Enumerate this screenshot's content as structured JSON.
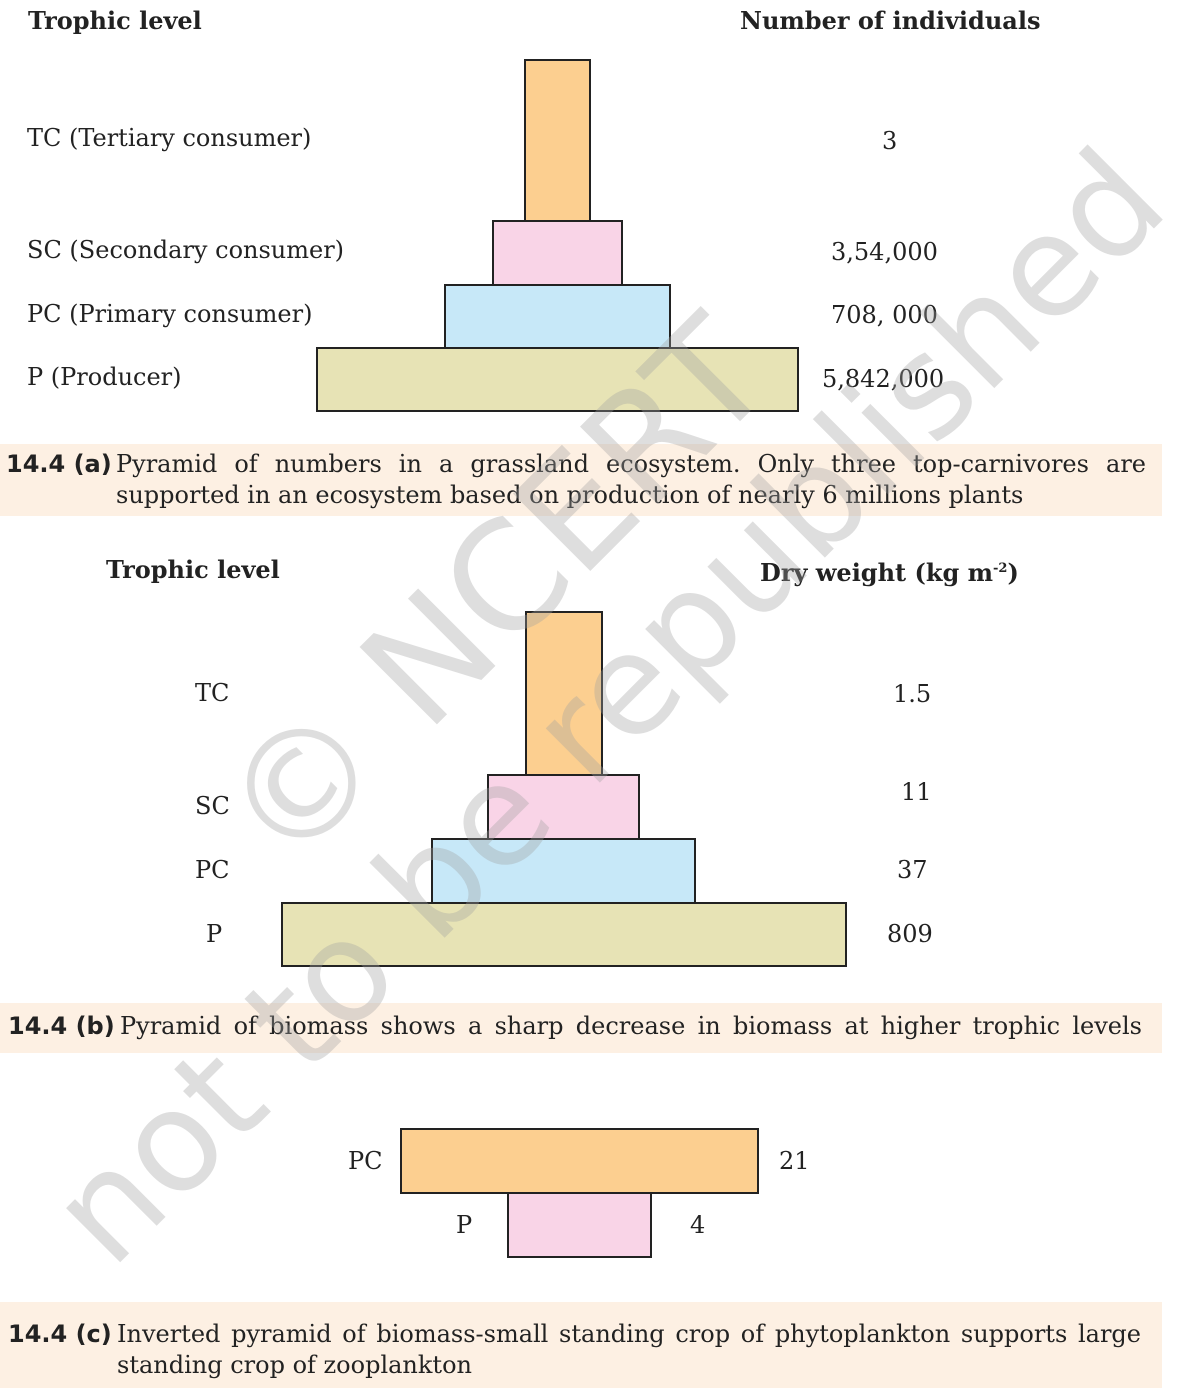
{
  "panel_a": {
    "col_trophic": "Trophic level",
    "col_value": "Number of individuals",
    "levels": [
      {
        "label": "TC (Tertiary consumer)",
        "value": "3"
      },
      {
        "label": "SC (Secondary consumer)",
        "value": "3,54,000"
      },
      {
        "label": "PC (Primary consumer)",
        "value": "708, 000"
      },
      {
        "label": "P (Producer)",
        "value": "5,842,000"
      }
    ],
    "caption_id": "14.4 (a)",
    "caption_line1": "Pyramid of numbers in a grassland ecosystem. Only three top-carnivores are",
    "caption_line2": "supported in an ecosystem based on production of nearly 6 millions plants"
  },
  "panel_b": {
    "col_trophic": "Trophic level",
    "col_value_main": "Dry weight (kg m",
    "col_value_sup": "-2",
    "col_value_end": ")",
    "levels": [
      {
        "label": "TC",
        "value": "1.5"
      },
      {
        "label": "SC",
        "value": "11"
      },
      {
        "label": "PC",
        "value": "37"
      },
      {
        "label": "P",
        "value": "809"
      }
    ],
    "caption_id": "14.4 (b)",
    "caption_line1": "Pyramid of biomass shows a sharp decrease in biomass at higher trophic levels"
  },
  "panel_c": {
    "levels": [
      {
        "label": "PC",
        "value": "21"
      },
      {
        "label": "P",
        "value": "4"
      }
    ],
    "caption_id": "14.4 (c)",
    "caption_line1": "Inverted pyramid of biomass-small standing crop of phytoplankton supports large",
    "caption_line2": "standing crop of zooplankton"
  },
  "watermark": {
    "line1": "© NCERT",
    "line2": "not to be republished"
  },
  "colors": {
    "tertiary": "#fccf90",
    "secondary": "#f9d4e7",
    "primary": "#c7e8f8",
    "producer": "#e7e3b5",
    "caption_bg": "#fdf0e3"
  }
}
